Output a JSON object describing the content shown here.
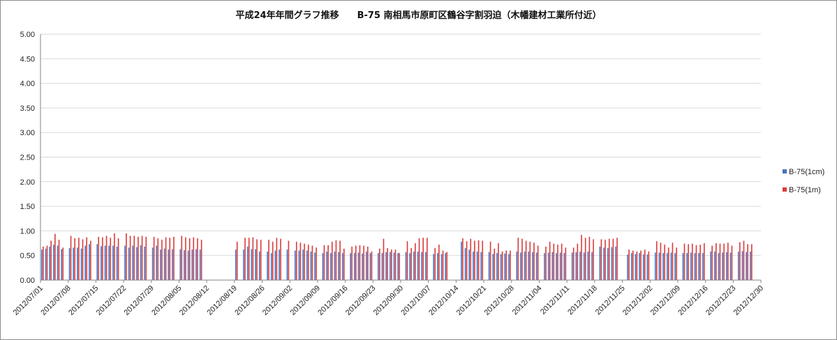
{
  "colors": {
    "series_1cm": "#4472c4",
    "series_1m": "#d93b3b",
    "grid": "#d9d9d9",
    "axis": "#868686"
  },
  "chart_data": {
    "type": "bar",
    "title": "平成24年年間グラフ推移　　B-75 南相馬市原町区鶴谷字割羽迫（木幡建材工業所付近）",
    "xlabel": "",
    "ylabel": "",
    "ylim": [
      0,
      5
    ],
    "yticks": [
      "0.00",
      "0.50",
      "1.00",
      "1.50",
      "2.00",
      "2.50",
      "3.00",
      "3.50",
      "4.00",
      "4.50",
      "5.00"
    ],
    "grid": "horizontal",
    "legend_position": "right",
    "x_start": "2012/07/01",
    "x_end": "2012/12/30",
    "x_tick_labels": [
      "2012/07/01",
      "2012/07/08",
      "2012/07/15",
      "2012/07/22",
      "2012/07/29",
      "2012/08/05",
      "2012/08/12",
      "2012/08/19",
      "2012/08/26",
      "2012/09/02",
      "2012/09/09",
      "2012/09/16",
      "2012/09/23",
      "2012/09/30",
      "2012/10/07",
      "2012/10/14",
      "2012/10/21",
      "2012/10/28",
      "2012/11/04",
      "2012/11/11",
      "2012/11/18",
      "2012/11/25",
      "2012/12/02",
      "2012/12/09",
      "2012/12/16",
      "2012/12/23",
      "2012/12/30"
    ],
    "series": [
      {
        "name": "B-75(1cm)",
        "values": [
          0.62,
          0.64,
          0.68,
          0.72,
          0.7,
          0.63,
          null,
          0.65,
          0.66,
          0.66,
          0.64,
          0.7,
          0.73,
          null,
          0.73,
          0.69,
          0.7,
          0.7,
          0.7,
          0.68,
          null,
          0.7,
          0.66,
          0.7,
          0.67,
          0.71,
          0.68,
          null,
          0.66,
          0.7,
          0.62,
          0.64,
          0.62,
          0.63,
          null,
          0.63,
          0.61,
          0.6,
          0.62,
          0.63,
          0.62,
          null,
          null,
          null,
          null,
          null,
          null,
          null,
          null,
          0.62,
          null,
          0.62,
          0.68,
          0.63,
          0.63,
          0.58,
          null,
          0.58,
          0.55,
          0.6,
          0.62,
          null,
          0.62,
          null,
          0.6,
          0.6,
          0.62,
          0.6,
          0.58,
          0.56,
          null,
          0.55,
          0.58,
          0.55,
          0.58,
          0.57,
          0.55,
          null,
          0.55,
          0.55,
          0.56,
          0.54,
          0.58,
          0.55,
          null,
          0.55,
          0.55,
          0.57,
          0.57,
          0.56,
          0.55,
          null,
          0.57,
          0.55,
          0.58,
          0.58,
          0.57,
          0.57,
          null,
          0.53,
          0.55,
          0.53,
          0.55,
          null,
          null,
          null,
          0.78,
          0.65,
          0.62,
          0.58,
          0.58,
          0.57,
          null,
          0.57,
          0.53,
          0.55,
          0.53,
          0.54,
          0.53,
          null,
          0.58,
          0.56,
          0.58,
          0.58,
          0.57,
          0.56,
          null,
          0.55,
          0.56,
          0.57,
          0.55,
          0.56,
          0.55,
          null,
          0.56,
          0.57,
          0.58,
          0.56,
          0.58,
          0.57,
          null,
          0.68,
          0.66,
          0.65,
          0.67,
          0.68,
          null,
          null,
          0.52,
          0.55,
          0.53,
          0.55,
          0.52,
          0.52,
          null,
          0.56,
          0.56,
          0.55,
          0.55,
          0.56,
          0.55,
          null,
          0.55,
          0.55,
          0.56,
          0.55,
          0.55,
          0.55,
          null,
          0.58,
          0.58,
          0.55,
          0.56,
          0.57,
          0.56,
          null,
          0.58,
          0.59,
          0.57,
          0.58,
          null,
          null
        ]
      },
      {
        "name": "B-75(1m)",
        "values": [
          0.68,
          0.7,
          0.8,
          0.94,
          0.82,
          0.66,
          null,
          0.9,
          0.85,
          0.86,
          0.83,
          0.87,
          0.8,
          null,
          0.88,
          0.87,
          0.9,
          0.86,
          0.95,
          0.85,
          null,
          0.95,
          0.9,
          0.9,
          0.88,
          0.9,
          0.88,
          null,
          0.88,
          0.85,
          0.82,
          0.87,
          0.86,
          0.88,
          null,
          0.9,
          0.87,
          0.85,
          0.87,
          0.85,
          0.82,
          null,
          null,
          null,
          null,
          null,
          null,
          null,
          null,
          0.78,
          null,
          0.86,
          0.86,
          0.87,
          0.83,
          0.82,
          null,
          0.82,
          0.78,
          0.86,
          0.84,
          null,
          0.8,
          null,
          0.78,
          0.76,
          0.74,
          0.72,
          0.7,
          0.66,
          null,
          0.71,
          0.71,
          0.78,
          0.81,
          0.8,
          0.64,
          null,
          0.68,
          0.7,
          0.71,
          0.7,
          0.68,
          0.58,
          null,
          0.64,
          0.84,
          0.65,
          0.62,
          0.62,
          0.55,
          null,
          0.79,
          0.65,
          0.75,
          0.85,
          0.86,
          0.86,
          null,
          0.65,
          0.72,
          0.6,
          0.57,
          null,
          null,
          null,
          0.85,
          0.79,
          0.84,
          0.8,
          0.81,
          0.8,
          null,
          0.78,
          0.64,
          0.75,
          0.58,
          0.6,
          0.6,
          null,
          0.86,
          0.84,
          0.8,
          0.78,
          0.76,
          0.7,
          null,
          0.68,
          0.78,
          0.74,
          0.72,
          0.74,
          0.66,
          null,
          0.66,
          0.74,
          0.92,
          0.86,
          0.88,
          0.83,
          null,
          0.83,
          0.82,
          0.84,
          0.84,
          0.86,
          null,
          null,
          0.62,
          0.6,
          0.58,
          0.6,
          0.62,
          0.58,
          null,
          0.79,
          0.76,
          0.72,
          0.66,
          0.76,
          0.66,
          null,
          0.74,
          0.73,
          0.74,
          0.71,
          0.72,
          0.75,
          null,
          0.7,
          0.75,
          0.74,
          0.74,
          0.76,
          0.7,
          null,
          0.77,
          0.8,
          0.73,
          0.73,
          null,
          null
        ]
      }
    ]
  }
}
